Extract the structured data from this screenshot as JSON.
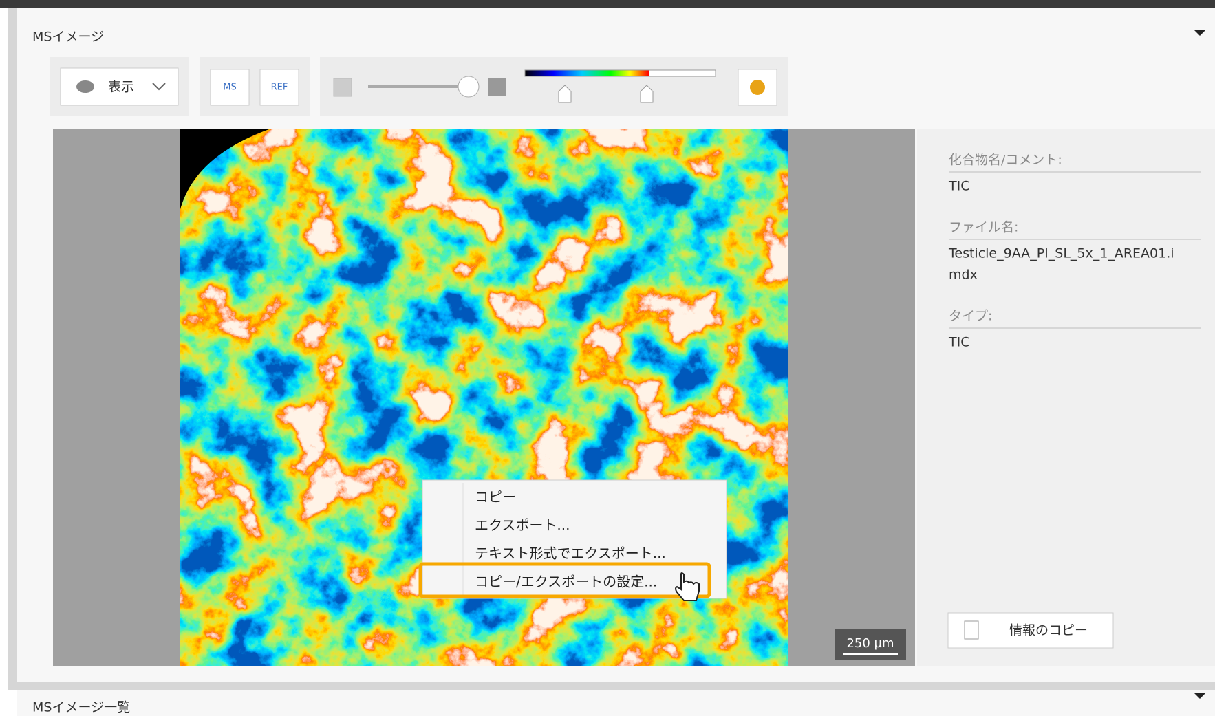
{
  "panel": {
    "title": "MSイメージ"
  },
  "toolbar": {
    "display": "表示",
    "ms": "MS",
    "ref": "REF"
  },
  "image": {
    "scale_bar": "250 µm"
  },
  "context_menu": {
    "items": [
      "コピー",
      "エクスポート...",
      "テキスト形式でエクスポート...",
      "コピー/エクスポートの設定..."
    ]
  },
  "info": {
    "fields": [
      {
        "label": "化合物名/コメント:",
        "value": [
          "TIC"
        ]
      },
      {
        "label": "ファイル名:",
        "value": [
          "Testicle_9AA_PI_SL_5x_1_AREA01.i",
          "mdx"
        ]
      },
      {
        "label": "タイプ:",
        "value": [
          "TIC"
        ]
      }
    ],
    "copy_button": "情報のコピー"
  },
  "bottom_panel": {
    "title": "MSイメージ一覧"
  }
}
